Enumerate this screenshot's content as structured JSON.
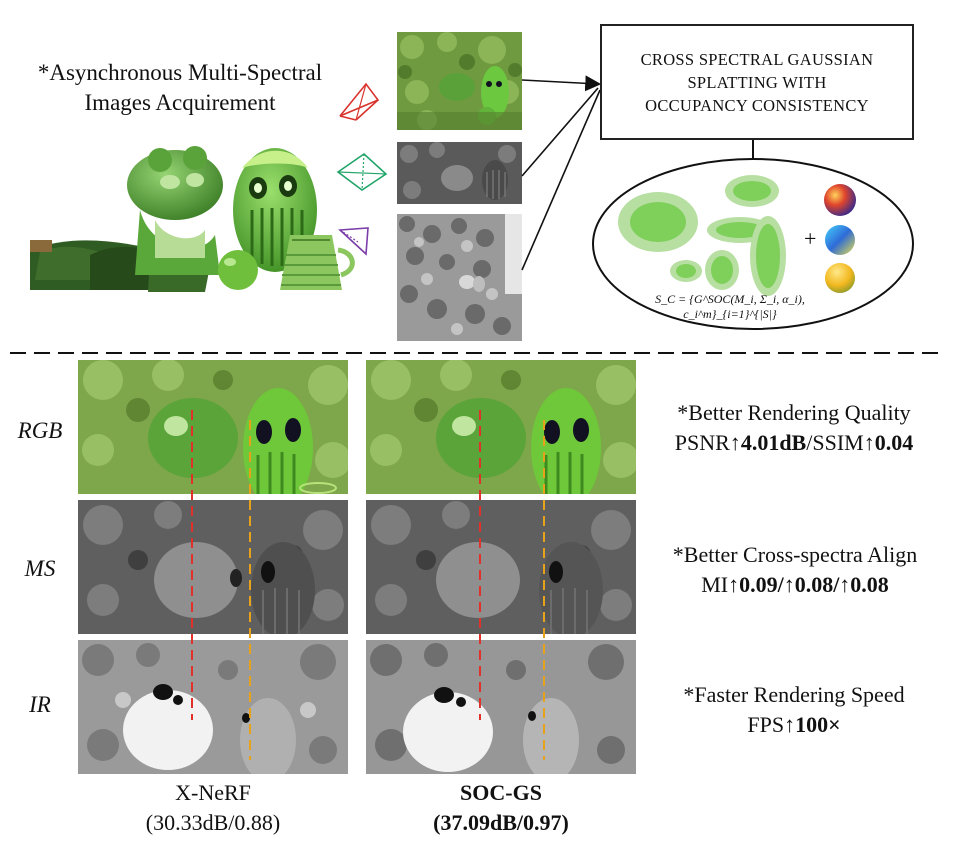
{
  "top": {
    "acquire_label_line1": "*Asynchronous Multi-Spectral",
    "acquire_label_line2": "Images Acquirement",
    "method_box_line1": "CROSS SPECTRAL GAUSSIAN",
    "method_box_line2": "SPLATTING WITH",
    "method_box_line3": "OCCUPANCY CONSISTENCY",
    "plus": "+",
    "formula_text": "S_C = {G^SOC(M_i, Σ_i, α_i), c_i^m}_{i=1}^{|S|}"
  },
  "rows": [
    {
      "label": "RGB"
    },
    {
      "label": "MS"
    },
    {
      "label": "IR"
    }
  ],
  "right": {
    "item1_title": "*Better Rendering Quality",
    "item1_prefix": "PSNR↑",
    "item1_val1": "4.01dB",
    "item1_mid": "/SSIM↑",
    "item1_val2": "0.04",
    "item2_title": "*Better Cross-spectra Align",
    "item2_prefix": "MI↑",
    "item2_vals": "0.09/↑0.08/↑0.08",
    "item3_title": "*Faster Rendering Speed",
    "item3_prefix": "FPS↑",
    "item3_val": "100×"
  },
  "captions": {
    "left_name": "X-NeRF",
    "left_metrics": "(30.33dB/0.88)",
    "right_name": "SOC-GS",
    "right_metrics": "(37.09dB/0.97)"
  },
  "colors": {
    "red_dash": "#e0322b",
    "orange_dash": "#e8a21a",
    "red_camera": "#d8332c",
    "green_camera": "#23a56a",
    "purple_camera": "#7a3ea8",
    "gaussian_fill": "#7fcf5b",
    "gaussian_halo": "#b7dfa2"
  }
}
